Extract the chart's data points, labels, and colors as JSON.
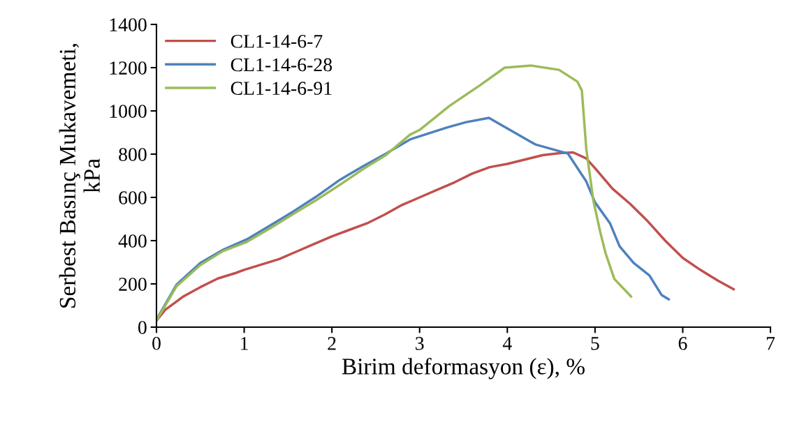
{
  "chart_data": {
    "type": "line",
    "xlabel": "Birim deformasyon (ε), %",
    "ylabel": "Serbest Basınç Mukavemeti,\nkPa",
    "xlim": [
      0,
      7
    ],
    "ylim": [
      0,
      1400
    ],
    "xticks": [
      0,
      1,
      2,
      3,
      4,
      5,
      6,
      7
    ],
    "yticks": [
      0,
      200,
      400,
      600,
      800,
      1000,
      1200,
      1400
    ],
    "grid": false,
    "legend": "top left",
    "marker": "none",
    "line_style": "solid",
    "series": [
      {
        "name": "CL1-14-6-7",
        "color": "#c0504d",
        "x": [
          0,
          0.1,
          0.3,
          0.5,
          0.7,
          0.9,
          1.0,
          1.2,
          1.4,
          1.6,
          1.8,
          2.0,
          2.2,
          2.4,
          2.6,
          2.8,
          3.0,
          3.2,
          3.4,
          3.6,
          3.8,
          4.0,
          4.2,
          4.4,
          4.6,
          4.75,
          4.9,
          5.0,
          5.2,
          5.4,
          5.6,
          5.8,
          6.0,
          6.2,
          6.4,
          6.58
        ],
        "values": [
          30,
          80,
          140,
          185,
          225,
          250,
          265,
          290,
          315,
          350,
          385,
          420,
          450,
          480,
          520,
          565,
          600,
          635,
          670,
          710,
          740,
          755,
          775,
          795,
          805,
          808,
          780,
          735,
          640,
          570,
          490,
          400,
          320,
          265,
          215,
          175
        ]
      },
      {
        "name": "CL1-14-6-28",
        "color": "#4f81bd",
        "x": [
          0,
          0.23,
          0.5,
          0.76,
          1.03,
          1.3,
          1.56,
          1.82,
          2.09,
          2.36,
          2.62,
          2.89,
          3.31,
          3.53,
          3.79,
          4.32,
          4.69,
          4.9,
          5.0,
          5.17,
          5.28,
          5.44,
          5.62,
          5.76,
          5.84
        ],
        "values": [
          35,
          197,
          297,
          358,
          406,
          471,
          535,
          603,
          681,
          745,
          803,
          868,
          923,
          948,
          968,
          845,
          803,
          674,
          577,
          481,
          374,
          297,
          239,
          148,
          129
        ]
      },
      {
        "name": "CL1-14-6-91",
        "color": "#9bbb59",
        "x": [
          0,
          0.23,
          0.5,
          0.76,
          1.03,
          1.3,
          1.56,
          1.82,
          2.09,
          2.36,
          2.62,
          2.89,
          3.0,
          3.34,
          3.69,
          3.97,
          4.27,
          4.59,
          4.8,
          4.85,
          4.9,
          4.98,
          5.06,
          5.12,
          5.22,
          5.41
        ],
        "values": [
          30,
          190,
          287,
          352,
          394,
          458,
          523,
          587,
          658,
          732,
          797,
          890,
          912,
          1023,
          1119,
          1200,
          1210,
          1190,
          1135,
          1094,
          826,
          587,
          439,
          342,
          223,
          142
        ]
      }
    ]
  }
}
